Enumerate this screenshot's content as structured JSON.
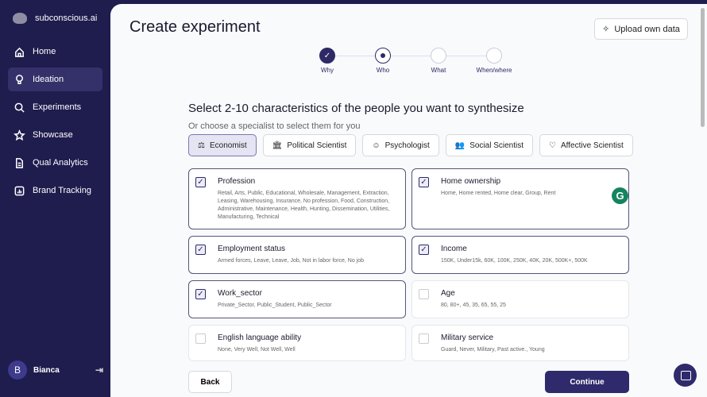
{
  "sidebar": {
    "brand": "subconscious.ai",
    "items": [
      {
        "label": "Home",
        "icon": "home-icon"
      },
      {
        "label": "Ideation",
        "icon": "lightbulb-icon",
        "active": true
      },
      {
        "label": "Experiments",
        "icon": "search-icon"
      },
      {
        "label": "Showcase",
        "icon": "star-icon"
      },
      {
        "label": "Qual Analytics",
        "icon": "document-icon"
      },
      {
        "label": "Brand Tracking",
        "icon": "chart-icon"
      }
    ],
    "user": {
      "initial": "B",
      "name": "Bianca"
    }
  },
  "header": {
    "title": "Create experiment",
    "upload_label": "Upload own data"
  },
  "steps": [
    {
      "label": "Why",
      "state": "done"
    },
    {
      "label": "Who",
      "state": "current"
    },
    {
      "label": "What",
      "state": "todo"
    },
    {
      "label": "When/where",
      "state": "todo"
    }
  ],
  "main": {
    "heading": "Select 2-10 characteristics of the people you want to synthesize",
    "subheading": "Or choose a specialist to select them for you",
    "specialists": [
      {
        "label": "Economist",
        "selected": true
      },
      {
        "label": "Political Scientist"
      },
      {
        "label": "Psychologist"
      },
      {
        "label": "Social Scientist"
      },
      {
        "label": "Affective Scientist"
      }
    ],
    "characteristics": [
      {
        "title": "Profession",
        "checked": true,
        "values": "Retail, Arts, Public, Educational, Wholesale, Management, Extraction, Leasing, Warehousing, Insurance, No profession, Food, Construction, Administrative, Maintenance, Health, Hunting, Dissemination, Utilities, Manufacturing, Technical"
      },
      {
        "title": "Home ownership",
        "checked": true,
        "values": "Home, Home rented, Home clear, Group, Rent"
      },
      {
        "title": "Employment status",
        "checked": true,
        "values": "Armed forces, Leave, Leave, Job, Not in labor force, No job"
      },
      {
        "title": "Income",
        "checked": true,
        "values": "150K, Under15k, 60K, 100K, 250K, 40K, 20K, 500K+, 500K"
      },
      {
        "title": "Work_sector",
        "checked": true,
        "values": "Private_Sector, Public_Student, Public_Sector"
      },
      {
        "title": "Age",
        "checked": false,
        "values": "80, 80+, 45, 35, 65, 55, 25"
      },
      {
        "title": "English language ability",
        "checked": false,
        "values": "None, Very Well, Not Well, Well"
      },
      {
        "title": "Military service",
        "checked": false,
        "values": "Guard, Never, Military, Past active., Young"
      }
    ],
    "back_label": "Back",
    "continue_label": "Continue"
  },
  "colors": {
    "sidebar": "#1f1c4e",
    "accent": "#2e2a6b"
  }
}
